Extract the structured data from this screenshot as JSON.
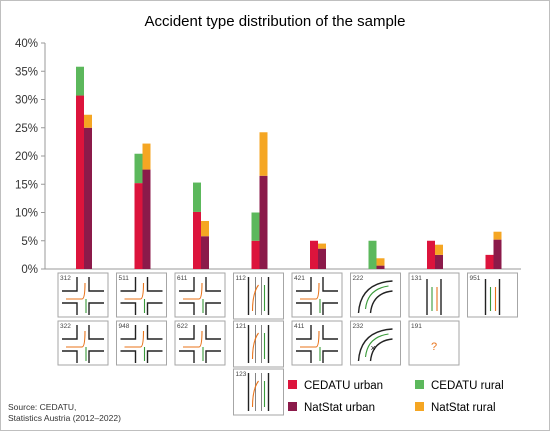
{
  "title": "Accident type distribution of the sample",
  "source_lines": [
    "Source: CEDATU,",
    "Statistics Austria (2012–2022)"
  ],
  "colors": {
    "cedatu_urban": "#dc143c",
    "cedatu_rural": "#5cb85c",
    "natstat_urban": "#8b1a4a",
    "natstat_rural": "#f5a623"
  },
  "chart_data": {
    "type": "bar",
    "stacked_pairs": true,
    "ylim": [
      0,
      40
    ],
    "yticks": [
      "0%",
      "5%",
      "10%",
      "15%",
      "20%",
      "25%",
      "30%",
      "35%",
      "40%"
    ],
    "grid": false,
    "legend_position": "bottom-right",
    "groups": [
      {
        "id": "312",
        "cedatu_urban": 30.7,
        "cedatu_rural": 5.1,
        "natstat_urban": 25.0,
        "natstat_rural": 2.3
      },
      {
        "id": "511",
        "cedatu_urban": 15.2,
        "cedatu_rural": 5.2,
        "natstat_urban": 17.6,
        "natstat_rural": 4.6
      },
      {
        "id": "611",
        "cedatu_urban": 10.1,
        "cedatu_rural": 5.2,
        "natstat_urban": 5.8,
        "natstat_rural": 2.7
      },
      {
        "id": "112",
        "cedatu_urban": 5.0,
        "cedatu_rural": 5.0,
        "natstat_urban": 16.5,
        "natstat_rural": 7.7
      },
      {
        "id": "421",
        "cedatu_urban": 5.0,
        "cedatu_rural": 0.0,
        "natstat_urban": 3.6,
        "natstat_rural": 0.9
      },
      {
        "id": "222",
        "cedatu_urban": 0.0,
        "cedatu_rural": 5.0,
        "natstat_urban": 0.6,
        "natstat_rural": 1.3
      },
      {
        "id": "131",
        "cedatu_urban": 5.0,
        "cedatu_rural": 0.0,
        "natstat_urban": 2.5,
        "natstat_rural": 1.8
      },
      {
        "id": "951",
        "cedatu_urban": 2.5,
        "cedatu_rural": 0.0,
        "natstat_urban": 5.2,
        "natstat_rural": 1.4
      }
    ],
    "series": [
      {
        "name": "CEDATU urban",
        "key": "cedatu_urban"
      },
      {
        "name": "CEDATU rural",
        "key": "cedatu_rural"
      },
      {
        "name": "NatStat urban",
        "key": "natstat_urban"
      },
      {
        "name": "NatStat rural",
        "key": "natstat_rural"
      }
    ]
  },
  "pictograms": [
    {
      "id": "312",
      "icon": "t-junction-turn-icon"
    },
    {
      "id": "511",
      "icon": "crossing-turn-icon"
    },
    {
      "id": "611",
      "icon": "crossing-straight-icon"
    },
    {
      "id": "112",
      "icon": "lane-overtake-icon"
    },
    {
      "id": "421",
      "icon": "junction-curve-icon"
    },
    {
      "id": "222",
      "icon": "curve-road-icon"
    },
    {
      "id": "131",
      "icon": "straight-road-icon"
    },
    {
      "id": "951",
      "icon": "bicycle-road-icon"
    },
    {
      "id": "322",
      "icon": "t-junction-turn-icon"
    },
    {
      "id": "948",
      "icon": "crossing-pedestrian-icon"
    },
    {
      "id": "622",
      "icon": "junction-turn-icon"
    },
    {
      "id": "121",
      "icon": "multi-lane-icon"
    },
    {
      "id": "411",
      "icon": "junction-crossing-icon"
    },
    {
      "id": "232",
      "icon": "curve-collision-icon"
    },
    {
      "id": "191",
      "icon": "unknown-icon",
      "glyph": "?"
    },
    {
      "id": "123",
      "icon": "multi-lane-icon"
    }
  ]
}
